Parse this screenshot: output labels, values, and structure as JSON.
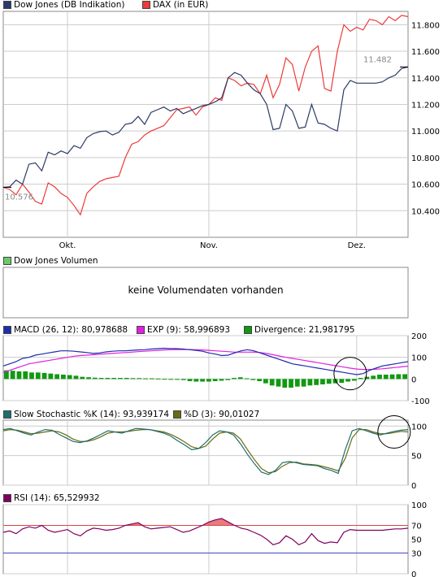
{
  "colors": {
    "dow": "#2b3a67",
    "dax": "#ee3a3a",
    "macd": "#1f2bb0",
    "exp": "#e020e0",
    "divergence": "#119911",
    "stoch_k": "#1f6e6e",
    "stoch_d": "#6b6b14",
    "rsi": "#800060",
    "rsi_band_high": "#dd4444",
    "rsi_band_low": "#4444cc",
    "grid": "#cccccc",
    "frame": "#888888"
  },
  "legend": {
    "dow": "Dow Jones (DB Indikation)",
    "dax": "DAX (in EUR)",
    "volume": "Dow Jones Volumen",
    "macd": "MACD (26, 12): 80,978688",
    "exp": "EXP (9): 58,996893",
    "divergence": "Divergence: 21,981795",
    "stoch_k": "Slow Stochastic %K (14): 93,939174",
    "stoch_d": "%D (3): 90,01027",
    "rsi": "RSI (14): 65,529932"
  },
  "volume_panel": {
    "message": "keine Volumendaten vorhanden"
  },
  "chart_data": [
    {
      "type": "line",
      "panel": "price",
      "x_labels": [
        "Okt.",
        "Nov.",
        "Dez."
      ],
      "x_label_index": [
        10,
        32,
        55
      ],
      "ylim": [
        10200,
        11900
      ],
      "yticks": [
        10400,
        10600,
        10800,
        11000,
        11200,
        11400,
        11600,
        11800
      ],
      "ytick_labels": [
        "10.400",
        "10.600",
        "10.800",
        "11.000",
        "11.200",
        "11.400",
        "11.600",
        "11.800"
      ],
      "grid": true,
      "annotations": [
        {
          "text": "10.576",
          "value": 10576
        },
        {
          "text": "11.482",
          "value": 11482
        }
      ],
      "series": [
        {
          "name": "Dow Jones (DB Indikation)",
          "values": [
            10576,
            10580,
            10630,
            10600,
            10750,
            10760,
            10700,
            10840,
            10820,
            10850,
            10830,
            10890,
            10870,
            10950,
            10980,
            10995,
            11000,
            10970,
            10990,
            11050,
            11060,
            11110,
            11050,
            11140,
            11160,
            11180,
            11150,
            11170,
            11130,
            11150,
            11170,
            11190,
            11200,
            11220,
            11250,
            11400,
            11440,
            11420,
            11360,
            11310,
            11280,
            11200,
            11010,
            11020,
            11200,
            11150,
            11020,
            11030,
            11200,
            11060,
            11050,
            11020,
            11000,
            11310,
            11380,
            11360,
            11360,
            11360,
            11360,
            11370,
            11400,
            11420,
            11470,
            11482
          ]
        },
        {
          "name": "DAX (in EUR)",
          "values": [
            10576,
            10560,
            10520,
            10600,
            10540,
            10470,
            10450,
            10610,
            10580,
            10530,
            10500,
            10440,
            10370,
            10530,
            10580,
            10620,
            10640,
            10650,
            10660,
            10800,
            10900,
            10920,
            10970,
            11000,
            11020,
            11040,
            11100,
            11160,
            11170,
            11180,
            11120,
            11180,
            11200,
            11250,
            11230,
            11400,
            11380,
            11340,
            11360,
            11350,
            11280,
            11420,
            11250,
            11350,
            11550,
            11500,
            11300,
            11480,
            11600,
            11640,
            11320,
            11300,
            11600,
            11800,
            11750,
            11780,
            11760,
            11840,
            11830,
            11800,
            11860,
            11830,
            11870,
            11860
          ]
        }
      ]
    },
    {
      "type": "line",
      "panel": "macd",
      "ylim": [
        -100,
        200
      ],
      "yticks": [
        -100,
        0,
        100,
        200
      ],
      "ytick_labels": [
        "-100",
        "0",
        "100",
        "200"
      ],
      "grid": true,
      "series": [
        {
          "name": "MACD (26, 12)",
          "values": [
            60,
            70,
            80,
            95,
            100,
            110,
            115,
            120,
            125,
            130,
            130,
            128,
            125,
            122,
            118,
            120,
            125,
            128,
            130,
            130,
            132,
            134,
            135,
            138,
            140,
            142,
            140,
            140,
            138,
            135,
            132,
            128,
            120,
            115,
            108,
            110,
            120,
            130,
            135,
            130,
            120,
            110,
            100,
            90,
            80,
            70,
            65,
            60,
            55,
            50,
            45,
            40,
            35,
            30,
            25,
            20,
            25,
            40,
            50,
            60,
            65,
            70,
            75,
            80
          ]
        },
        {
          "name": "EXP (9)",
          "values": [
            30,
            40,
            50,
            60,
            70,
            75,
            80,
            85,
            90,
            95,
            100,
            105,
            108,
            110,
            112,
            114,
            116,
            118,
            120,
            122,
            124,
            126,
            128,
            130,
            132,
            134,
            135,
            136,
            136,
            136,
            135,
            134,
            132,
            130,
            128,
            126,
            124,
            124,
            124,
            124,
            122,
            118,
            112,
            106,
            100,
            95,
            90,
            85,
            80,
            75,
            70,
            65,
            60,
            55,
            50,
            46,
            44,
            44,
            45,
            47,
            50,
            53,
            56,
            59
          ]
        },
        {
          "name": "Divergence",
          "bars": [
            40,
            38,
            35,
            35,
            30,
            30,
            28,
            25,
            22,
            20,
            18,
            15,
            10,
            8,
            6,
            5,
            5,
            5,
            5,
            5,
            4,
            4,
            3,
            3,
            2,
            1,
            0,
            -2,
            -5,
            -10,
            -12,
            -12,
            -12,
            -10,
            -8,
            -5,
            5,
            8,
            3,
            -5,
            -10,
            -20,
            -30,
            -35,
            -40,
            -40,
            -35,
            -35,
            -30,
            -28,
            -25,
            -22,
            -20,
            -18,
            -12,
            -8,
            5,
            10,
            15,
            20,
            20,
            21,
            22,
            22
          ]
        }
      ]
    },
    {
      "type": "line",
      "panel": "stochastic",
      "ylim": [
        0,
        110
      ],
      "yticks": [
        0,
        50,
        100
      ],
      "ytick_labels": [
        "0",
        "50",
        "100"
      ],
      "grid": true,
      "series": [
        {
          "name": "Slow Stochastic %K (14)",
          "values": [
            94,
            96,
            92,
            88,
            85,
            90,
            94,
            93,
            86,
            80,
            74,
            72,
            75,
            80,
            86,
            92,
            90,
            88,
            92,
            96,
            95,
            94,
            91,
            88,
            83,
            75,
            68,
            60,
            62,
            72,
            85,
            92,
            90,
            85,
            70,
            52,
            36,
            22,
            18,
            25,
            38,
            40,
            38,
            35,
            34,
            33,
            28,
            25,
            20,
            60,
            92,
            96,
            92,
            88,
            85,
            88,
            91,
            93,
            94
          ]
        },
        {
          "name": "%D (3)",
          "values": [
            92,
            94,
            93,
            90,
            87,
            88,
            90,
            92,
            90,
            85,
            78,
            74,
            74,
            77,
            82,
            88,
            90,
            90,
            91,
            93,
            94,
            94,
            92,
            90,
            86,
            80,
            73,
            65,
            62,
            66,
            78,
            88,
            90,
            88,
            78,
            60,
            43,
            28,
            21,
            23,
            32,
            38,
            39,
            36,
            35,
            34,
            31,
            28,
            24,
            45,
            80,
            94,
            94,
            90,
            87,
            87,
            89,
            91,
            90
          ]
        }
      ]
    },
    {
      "type": "line",
      "panel": "rsi",
      "ylim": [
        0,
        100
      ],
      "yticks": [
        0,
        30,
        50,
        70,
        100
      ],
      "ytick_labels": [
        "0",
        "30",
        "50",
        "70",
        "100"
      ],
      "bands": [
        30,
        70
      ],
      "grid": true,
      "series": [
        {
          "name": "RSI (14)",
          "values": [
            60,
            62,
            58,
            65,
            68,
            66,
            70,
            63,
            60,
            62,
            64,
            58,
            55,
            62,
            66,
            65,
            63,
            64,
            66,
            70,
            72,
            74,
            68,
            65,
            66,
            67,
            68,
            64,
            60,
            62,
            66,
            70,
            75,
            78,
            80,
            75,
            70,
            66,
            64,
            60,
            56,
            50,
            42,
            45,
            55,
            50,
            42,
            46,
            58,
            48,
            44,
            46,
            45,
            60,
            64,
            63,
            63,
            63,
            63,
            63,
            64,
            65,
            65,
            66
          ]
        }
      ]
    }
  ]
}
